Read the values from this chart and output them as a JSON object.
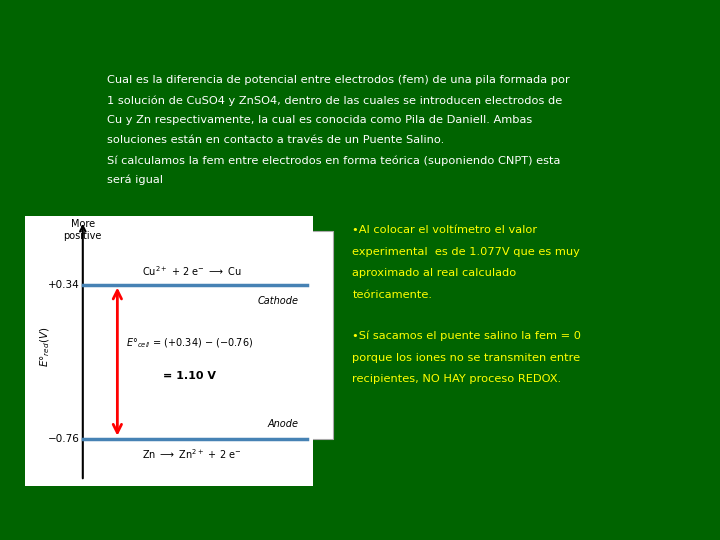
{
  "bg_color": "#006400",
  "text_color_white": "#ffffff",
  "text_color_yellow": "#ffff00",
  "top_text_lines": [
    "Cual es la diferencia de potencial entre electrodos (fem) de una pila formada por",
    "1 solución de CuSO4 y ZnSO4, dentro de las cuales se introducen electrodos de",
    "Cu y Zn respectivamente, la cual es conocida como Pila de Daniell. Ambas",
    "soluciones están en contacto a través de un Puente Salino.",
    "Sí calculamos la fem entre electrodos en forma teórica (suponiendo CNPT) esta",
    "será igual"
  ],
  "bullet1_lines": [
    "•Al colocar el voltímetro el valor",
    "experimental  es de 1.077V que es muy",
    "aproximado al real calculado",
    "teóricamente."
  ],
  "bullet2_lines": [
    "•Sí sacamos el puente salino la fem = 0",
    "porque los iones no se transmiten entre",
    "recipientes, NO HAY proceso REDOX."
  ]
}
